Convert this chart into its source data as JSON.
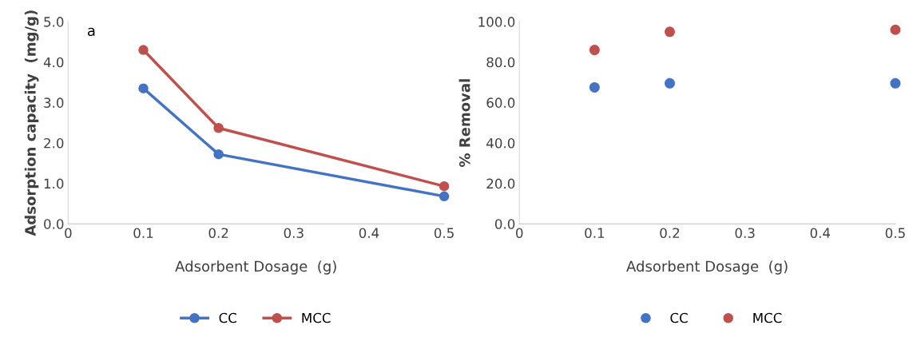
{
  "chart_data": [
    {
      "type": "line",
      "xlabel": "Adsorbent Dosage  (g)",
      "ylabel": "Adsorption capacity  (mg/g)",
      "annotations": [
        "a"
      ],
      "marker": "circle",
      "line_style": "solid",
      "legend": "bottom",
      "grid": false,
      "series": [
        {
          "name": "CC",
          "color": "#4472c4",
          "x": [
            0.1,
            0.2,
            0.5
          ],
          "values": [
            3.35,
            1.72,
            0.68
          ]
        },
        {
          "name": "MCC",
          "color": "#c0504d",
          "x": [
            0.1,
            0.2,
            0.5
          ],
          "values": [
            4.3,
            2.37,
            0.93
          ]
        }
      ],
      "xlim": [
        0,
        0.5
      ],
      "xticks": [
        {
          "value": 0,
          "label": "0"
        },
        {
          "value": 0.1,
          "label": "0.1"
        },
        {
          "value": 0.2,
          "label": "0.2"
        },
        {
          "value": 0.3,
          "label": "0.3"
        },
        {
          "value": 0.4,
          "label": "0.4"
        },
        {
          "value": 0.5,
          "label": "0.5"
        }
      ],
      "ylim": [
        0,
        5
      ],
      "yticks": [
        {
          "value": 0,
          "label": "0.0"
        },
        {
          "value": 1,
          "label": "1.0"
        },
        {
          "value": 2,
          "label": "2.0"
        },
        {
          "value": 3,
          "label": "3.0"
        },
        {
          "value": 4,
          "label": "4.0"
        },
        {
          "value": 5,
          "label": "5.0"
        }
      ]
    },
    {
      "type": "scatter",
      "xlabel": "Adsorbent Dosage  (g)",
      "ylabel": "% Removal",
      "marker": "circle",
      "legend": "bottom",
      "grid": false,
      "series": [
        {
          "name": "CC",
          "color": "#4472c4",
          "x": [
            0.1,
            0.2,
            0.5
          ],
          "values": [
            67.5,
            69.5,
            69.5
          ]
        },
        {
          "name": "MCC",
          "color": "#c0504d",
          "x": [
            0.1,
            0.2,
            0.5
          ],
          "values": [
            86,
            95,
            96
          ]
        }
      ],
      "xlim": [
        0,
        0.5
      ],
      "xticks": [
        {
          "value": 0,
          "label": "0"
        },
        {
          "value": 0.1,
          "label": "0.1"
        },
        {
          "value": 0.2,
          "label": "0.2"
        },
        {
          "value": 0.3,
          "label": "0.3"
        },
        {
          "value": 0.4,
          "label": "0.4"
        },
        {
          "value": 0.5,
          "label": "0.5"
        }
      ],
      "ylim": [
        0,
        100
      ],
      "yticks": [
        {
          "value": 0,
          "label": "0.0"
        },
        {
          "value": 20,
          "label": "20.0"
        },
        {
          "value": 40,
          "label": "40.0"
        },
        {
          "value": 60,
          "label": "60.0"
        },
        {
          "value": 80,
          "label": "80.0"
        },
        {
          "value": 100,
          "label": "100.0"
        }
      ]
    }
  ]
}
